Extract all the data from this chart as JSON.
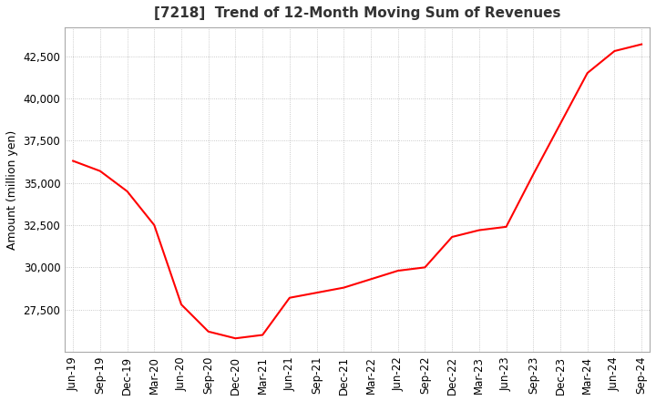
{
  "title": "[7218]  Trend of 12-Month Moving Sum of Revenues",
  "ylabel": "Amount (million yen)",
  "line_color": "#ff0000",
  "background_color": "#ffffff",
  "grid_color": "#bbbbbb",
  "x_labels": [
    "Jun-19",
    "Sep-19",
    "Dec-19",
    "Mar-20",
    "Jun-20",
    "Sep-20",
    "Dec-20",
    "Mar-21",
    "Jun-21",
    "Sep-21",
    "Dec-21",
    "Mar-22",
    "Jun-22",
    "Sep-22",
    "Dec-22",
    "Mar-23",
    "Jun-23",
    "Sep-23",
    "Dec-23",
    "Mar-24",
    "Jun-24",
    "Sep-24"
  ],
  "values": [
    36300,
    35700,
    34500,
    32500,
    27800,
    26200,
    25800,
    26000,
    28200,
    28500,
    28800,
    29300,
    29800,
    30000,
    31800,
    32200,
    32400,
    35500,
    38500,
    41500,
    42800,
    43200
  ],
  "ylim": [
    25000,
    44200
  ],
  "yticks": [
    27500,
    30000,
    32500,
    35000,
    37500,
    40000,
    42500
  ]
}
